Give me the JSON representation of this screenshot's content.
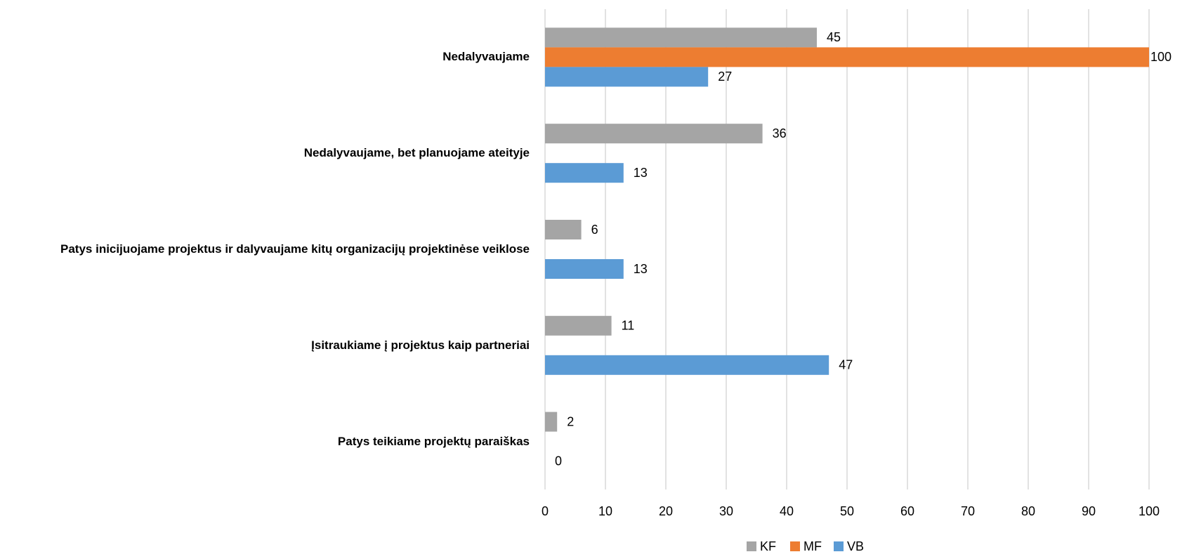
{
  "chart_data": {
    "type": "hbar",
    "categories": [
      "Nedalyvaujame",
      "Nedalyvaujame, bet planuojame ateityje",
      "Patys inicijuojame projektus ir dalyvaujame kitų organizacijų projektinėse veiklose",
      "Įsitraukiame į projektus kaip partneriai",
      "Patys teikiame projektų paraiškas"
    ],
    "series": [
      {
        "name": "KF",
        "color": "#a5a5a5",
        "values": [
          45,
          36,
          6,
          11,
          2
        ]
      },
      {
        "name": "MF",
        "color": "#ed7d31",
        "values": [
          100,
          null,
          null,
          null,
          null
        ]
      },
      {
        "name": "VB",
        "color": "#5b9bd5",
        "values": [
          27,
          13,
          13,
          47,
          0
        ]
      }
    ],
    "xlim": [
      0,
      100
    ],
    "xticks": [
      0,
      10,
      20,
      30,
      40,
      50,
      60,
      70,
      80,
      90,
      100
    ],
    "grid": true,
    "legend": "bottom"
  }
}
